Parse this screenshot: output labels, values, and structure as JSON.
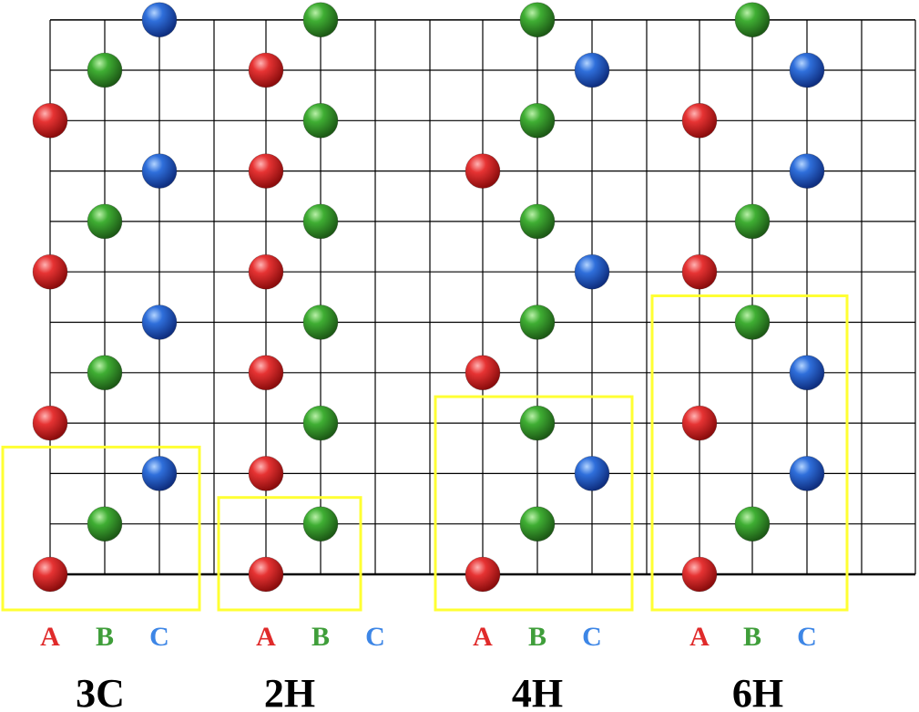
{
  "colors": {
    "A": "#e02a2a",
    "B": "#3f9e3a",
    "C": "#3d86e6",
    "grid": "#000000",
    "highlight": "#ffff33",
    "title": "#000000"
  },
  "layer_labels": {
    "A": "A",
    "B": "B",
    "C": "C"
  },
  "polytypes": [
    {
      "id": "3c",
      "name": "3C",
      "atoms": [
        {
          "site": "A",
          "level": 0
        },
        {
          "site": "B",
          "level": 1
        },
        {
          "site": "C",
          "level": 2
        },
        {
          "site": "A",
          "level": 3
        },
        {
          "site": "B",
          "level": 4
        },
        {
          "site": "C",
          "level": 5
        },
        {
          "site": "A",
          "level": 6
        },
        {
          "site": "B",
          "level": 7
        },
        {
          "site": "C",
          "level": 8
        },
        {
          "site": "A",
          "level": 9
        },
        {
          "site": "B",
          "level": 10
        },
        {
          "site": "C",
          "level": 11
        }
      ],
      "unit_cell": {
        "from_level": 0,
        "to_level": 2
      }
    },
    {
      "id": "2h",
      "name": "2H",
      "atoms": [
        {
          "site": "A",
          "level": 0
        },
        {
          "site": "B",
          "level": 1
        },
        {
          "site": "A",
          "level": 2
        },
        {
          "site": "B",
          "level": 3
        },
        {
          "site": "A",
          "level": 4
        },
        {
          "site": "B",
          "level": 5
        },
        {
          "site": "A",
          "level": 6
        },
        {
          "site": "B",
          "level": 7
        },
        {
          "site": "A",
          "level": 8
        },
        {
          "site": "B",
          "level": 9
        },
        {
          "site": "A",
          "level": 10
        },
        {
          "site": "B",
          "level": 11
        }
      ],
      "unit_cell": {
        "from_level": 0,
        "to_level": 1
      }
    },
    {
      "id": "4h",
      "name": "4H",
      "atoms": [
        {
          "site": "A",
          "level": 0
        },
        {
          "site": "B",
          "level": 1
        },
        {
          "site": "C",
          "level": 2
        },
        {
          "site": "B",
          "level": 3
        },
        {
          "site": "A",
          "level": 4
        },
        {
          "site": "B",
          "level": 5
        },
        {
          "site": "C",
          "level": 6
        },
        {
          "site": "B",
          "level": 7
        },
        {
          "site": "A",
          "level": 8
        },
        {
          "site": "B",
          "level": 9
        },
        {
          "site": "C",
          "level": 10
        },
        {
          "site": "B",
          "level": 11
        }
      ],
      "unit_cell": {
        "from_level": 0,
        "to_level": 3
      }
    },
    {
      "id": "6h",
      "name": "6H",
      "atoms": [
        {
          "site": "A",
          "level": 0
        },
        {
          "site": "B",
          "level": 1
        },
        {
          "site": "C",
          "level": 2
        },
        {
          "site": "A",
          "level": 3
        },
        {
          "site": "C",
          "level": 4
        },
        {
          "site": "B",
          "level": 5
        },
        {
          "site": "A",
          "level": 6
        },
        {
          "site": "B",
          "level": 7
        },
        {
          "site": "C",
          "level": 8
        },
        {
          "site": "A",
          "level": 9
        },
        {
          "site": "C",
          "level": 10
        },
        {
          "site": "B",
          "level": 11
        }
      ],
      "unit_cell": {
        "from_level": 0,
        "to_level": 5
      }
    }
  ]
}
